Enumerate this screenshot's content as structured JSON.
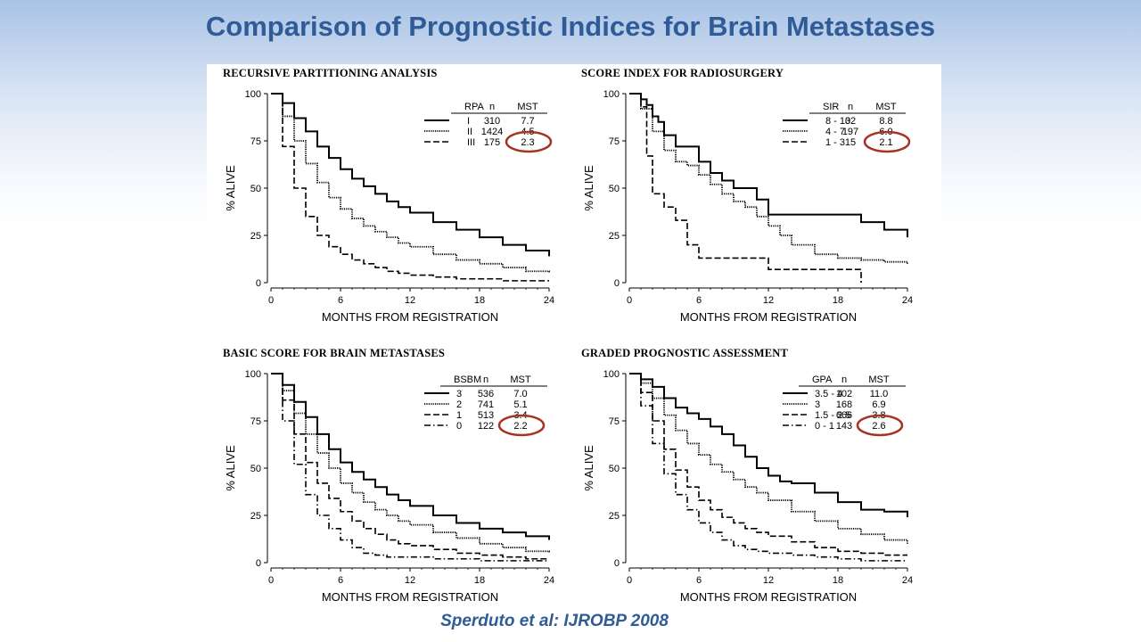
{
  "slide": {
    "title": "Comparison of Prognostic Indices for Brain Metastases",
    "citation": "Sperduto et al:  IJROBP 2008"
  },
  "colors": {
    "title": "#2f5b96",
    "highlight_circle": "#a83222",
    "curve": "#000000"
  },
  "chart_data": [
    {
      "type": "line",
      "title": "RECURSIVE PARTITIONING ANALYSIS",
      "xlabel": "MONTHS FROM REGISTRATION",
      "ylabel": "% ALIVE",
      "xlim": [
        0,
        24
      ],
      "ylim": [
        0,
        100
      ],
      "xticks": [
        0,
        6,
        12,
        18,
        24
      ],
      "yticks": [
        0,
        25,
        50,
        75,
        100
      ],
      "grid": false,
      "legend_position": "top-right",
      "legend_headers": [
        "RPA",
        "n",
        "MST"
      ],
      "highlighted_mst": "2.3",
      "series": [
        {
          "name": "I",
          "n": "310",
          "mst": "7.7",
          "style": "solid",
          "x": [
            0,
            1,
            2,
            3,
            4,
            5,
            6,
            7,
            8,
            9,
            10,
            11,
            12,
            14,
            16,
            18,
            20,
            22,
            24
          ],
          "y": [
            100,
            95,
            87,
            80,
            72,
            66,
            60,
            55,
            51,
            47,
            43,
            40,
            37,
            32,
            28,
            24,
            20,
            17,
            14
          ]
        },
        {
          "name": "II",
          "n": "1424",
          "mst": "4.5",
          "style": "dotted",
          "x": [
            0,
            1,
            2,
            3,
            4,
            5,
            6,
            7,
            8,
            9,
            10,
            11,
            12,
            14,
            16,
            18,
            20,
            22,
            24
          ],
          "y": [
            100,
            88,
            75,
            63,
            53,
            45,
            39,
            34,
            30,
            27,
            24,
            21,
            19,
            15,
            12,
            10,
            8,
            6,
            5
          ]
        },
        {
          "name": "III",
          "n": "175",
          "mst": "2.3",
          "style": "dashed",
          "x": [
            0,
            1,
            2,
            3,
            4,
            5,
            6,
            7,
            8,
            9,
            10,
            11,
            12,
            14,
            16,
            18,
            20,
            22,
            24
          ],
          "y": [
            100,
            72,
            50,
            35,
            25,
            19,
            15,
            12,
            10,
            8,
            6,
            5,
            4,
            3,
            2,
            2,
            1,
            1,
            1
          ]
        }
      ]
    },
    {
      "type": "line",
      "title": "SCORE INDEX FOR RADIOSURGERY",
      "xlabel": "MONTHS FROM REGISTRATION",
      "ylabel": "% ALIVE",
      "xlim": [
        0,
        24
      ],
      "ylim": [
        0,
        100
      ],
      "xticks": [
        0,
        6,
        12,
        18,
        24
      ],
      "yticks": [
        0,
        25,
        50,
        75,
        100
      ],
      "grid": false,
      "legend_position": "top-right",
      "legend_headers": [
        "SIR",
        "n",
        "MST"
      ],
      "highlighted_mst": "2.1",
      "series": [
        {
          "name": "8 - 10",
          "n": "32",
          "mst": "8.8",
          "style": "solid",
          "x": [
            0,
            1,
            1.5,
            2,
            2.5,
            3,
            4,
            5,
            6,
            7,
            8,
            9,
            10,
            11,
            12,
            14,
            16,
            18,
            19,
            20,
            22,
            24
          ],
          "y": [
            100,
            97,
            94,
            88,
            85,
            78,
            72,
            72,
            64,
            58,
            54,
            50,
            50,
            44,
            36,
            36,
            36,
            36,
            36,
            32,
            28,
            24
          ]
        },
        {
          "name": "4 - 7",
          "n": "197",
          "mst": "6.0",
          "style": "dotted",
          "x": [
            0,
            1,
            2,
            3,
            4,
            5,
            6,
            7,
            8,
            9,
            10,
            11,
            12,
            13,
            14,
            16,
            18,
            20,
            22,
            24
          ],
          "y": [
            100,
            92,
            80,
            70,
            64,
            62,
            57,
            52,
            47,
            43,
            40,
            35,
            30,
            25,
            20,
            15,
            13,
            12,
            11,
            10
          ]
        },
        {
          "name": "1 - 3",
          "n": "15",
          "mst": "2.1",
          "style": "dashed",
          "x": [
            0,
            1,
            1.5,
            2,
            3,
            4,
            5,
            6,
            8,
            10,
            12,
            14,
            16,
            18,
            19,
            20,
            20
          ],
          "y": [
            100,
            93,
            67,
            47,
            40,
            33,
            20,
            13,
            13,
            13,
            7,
            7,
            7,
            7,
            7,
            7,
            0
          ]
        }
      ]
    },
    {
      "type": "line",
      "title": "BASIC SCORE FOR BRAIN METASTASES",
      "xlabel": "MONTHS FROM REGISTRATION",
      "ylabel": "% ALIVE",
      "xlim": [
        0,
        24
      ],
      "ylim": [
        0,
        100
      ],
      "xticks": [
        0,
        6,
        12,
        18,
        24
      ],
      "yticks": [
        0,
        25,
        50,
        75,
        100
      ],
      "grid": false,
      "legend_position": "top-right",
      "legend_headers": [
        "BSBM",
        "n",
        "MST"
      ],
      "highlighted_mst": "2.2",
      "series": [
        {
          "name": "3",
          "n": "536",
          "mst": "7.0",
          "style": "solid",
          "x": [
            0,
            1,
            2,
            3,
            4,
            5,
            6,
            7,
            8,
            9,
            10,
            11,
            12,
            14,
            16,
            18,
            20,
            22,
            24
          ],
          "y": [
            100,
            94,
            85,
            77,
            68,
            60,
            53,
            48,
            44,
            40,
            36,
            33,
            30,
            25,
            21,
            18,
            16,
            14,
            12
          ]
        },
        {
          "name": "2",
          "n": "741",
          "mst": "5.1",
          "style": "dotted",
          "x": [
            0,
            1,
            2,
            3,
            4,
            5,
            6,
            7,
            8,
            9,
            10,
            11,
            12,
            14,
            16,
            18,
            20,
            22,
            24
          ],
          "y": [
            100,
            91,
            79,
            68,
            58,
            50,
            42,
            37,
            32,
            28,
            25,
            22,
            20,
            16,
            13,
            10,
            8,
            6,
            5
          ]
        },
        {
          "name": "1",
          "n": "513",
          "mst": "3.4",
          "style": "dashed",
          "x": [
            0,
            1,
            2,
            3,
            4,
            5,
            6,
            7,
            8,
            9,
            10,
            11,
            12,
            14,
            16,
            18,
            20,
            22,
            24
          ],
          "y": [
            100,
            86,
            68,
            53,
            42,
            34,
            27,
            22,
            18,
            15,
            12,
            10,
            9,
            7,
            5,
            4,
            3,
            2,
            2
          ]
        },
        {
          "name": "0",
          "n": "122",
          "mst": "2.2",
          "style": "dashdot",
          "x": [
            0,
            1,
            2,
            3,
            4,
            5,
            6,
            7,
            8,
            9,
            10,
            11,
            12,
            14,
            16,
            18,
            20,
            22,
            24
          ],
          "y": [
            100,
            75,
            52,
            36,
            25,
            18,
            12,
            8,
            5,
            4,
            3,
            3,
            3,
            2,
            2,
            1,
            1,
            1,
            1
          ]
        }
      ]
    },
    {
      "type": "line",
      "title": "GRADED PROGNOSTIC ASSESSMENT",
      "xlabel": "MONTHS FROM REGISTRATION",
      "ylabel": "% ALIVE",
      "xlim": [
        0,
        24
      ],
      "ylim": [
        0,
        100
      ],
      "xticks": [
        0,
        6,
        12,
        18,
        24
      ],
      "yticks": [
        0,
        25,
        50,
        75,
        100
      ],
      "grid": false,
      "legend_position": "top-right",
      "legend_headers": [
        "GPA",
        "n",
        "MST"
      ],
      "highlighted_mst": "2.6",
      "series": [
        {
          "name": "3.5 - 4",
          "n": "102",
          "mst": "11.0",
          "style": "solid",
          "x": [
            0,
            1,
            2,
            3,
            4,
            5,
            6,
            7,
            8,
            9,
            10,
            11,
            12,
            13,
            14,
            16,
            18,
            20,
            22,
            23,
            24
          ],
          "y": [
            100,
            97,
            93,
            87,
            82,
            79,
            76,
            72,
            68,
            62,
            56,
            50,
            46,
            43,
            42,
            37,
            32,
            28,
            27,
            27,
            24
          ]
        },
        {
          "name": "3",
          "n": "168",
          "mst": "6.9",
          "style": "dotted",
          "x": [
            0,
            1,
            2,
            3,
            4,
            5,
            6,
            7,
            8,
            9,
            10,
            11,
            12,
            14,
            16,
            18,
            20,
            22,
            24
          ],
          "y": [
            100,
            95,
            87,
            78,
            70,
            63,
            57,
            52,
            48,
            44,
            40,
            37,
            33,
            27,
            22,
            18,
            15,
            12,
            10
          ]
        },
        {
          "name": "1.5 - 2.5",
          "n": "666",
          "mst": "3.8",
          "style": "dashed",
          "x": [
            0,
            1,
            2,
            3,
            4,
            5,
            6,
            7,
            8,
            9,
            10,
            11,
            12,
            14,
            16,
            18,
            20,
            22,
            24
          ],
          "y": [
            100,
            90,
            75,
            60,
            49,
            40,
            33,
            28,
            24,
            21,
            18,
            16,
            14,
            11,
            8,
            6,
            5,
            4,
            4
          ]
        },
        {
          "name": "0 - 1",
          "n": "143",
          "mst": "2.6",
          "style": "dashdot",
          "x": [
            0,
            1,
            2,
            3,
            4,
            5,
            6,
            7,
            8,
            9,
            10,
            11,
            12,
            14,
            16,
            18,
            20,
            22,
            24
          ],
          "y": [
            100,
            83,
            63,
            47,
            36,
            28,
            21,
            16,
            12,
            9,
            7,
            6,
            5,
            4,
            3,
            2,
            1,
            1,
            1
          ]
        }
      ]
    }
  ]
}
